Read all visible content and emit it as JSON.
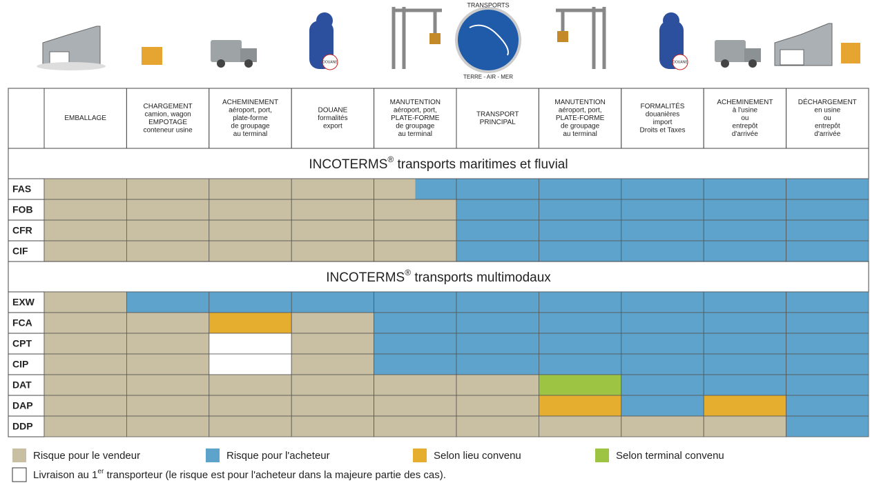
{
  "icons": {
    "globe_top": "TRANSPORTS",
    "globe_bottom": "TERRE - AIR - MER",
    "customs_left": "DOUANE",
    "customs_right": "DOUANE"
  },
  "table": {
    "columns": [
      [
        "EMBALLAGE"
      ],
      [
        "CHARGEMENT",
        "camion, wagon",
        "EMPOTAGE",
        "conteneur usine"
      ],
      [
        "ACHEMINEMENT",
        "aéroport, port,",
        "plate-forme",
        "de groupage",
        "au terminal"
      ],
      [
        "DOUANE",
        "formalités",
        "export"
      ],
      [
        "MANUTENTION",
        "aéroport, port,",
        "PLATE-FORME",
        "de groupage",
        "au terminal"
      ],
      [
        "TRANSPORT",
        "PRINCIPAL"
      ],
      [
        "MANUTENTION",
        "aéroport, port,",
        "PLATE-FORME",
        "de groupage",
        "au terminal"
      ],
      [
        "FORMALITÉS",
        "douanières",
        "import",
        "Droits et Taxes"
      ],
      [
        "ACHEMINEMENT",
        "à l'usine",
        "ou",
        "entrepôt",
        "d'arrivée"
      ],
      [
        "DÉCHARGEMENT",
        "en usine",
        "ou",
        "entrepôt",
        "d'arrivée"
      ]
    ],
    "sections": [
      {
        "title": [
          "INCOTERMS",
          "®",
          " transports maritimes et fluvial"
        ],
        "rows": [
          {
            "code": "FAS",
            "cells": [
              0,
              0,
              0,
              0,
              [
                0,
                1
              ],
              1,
              1,
              1,
              1,
              1
            ]
          },
          {
            "code": "FOB",
            "cells": [
              0,
              0,
              0,
              0,
              0,
              1,
              1,
              1,
              1,
              1
            ]
          },
          {
            "code": "CFR",
            "cells": [
              0,
              0,
              0,
              0,
              0,
              1,
              1,
              1,
              1,
              1
            ]
          },
          {
            "code": "CIF",
            "cells": [
              0,
              0,
              0,
              0,
              0,
              1,
              1,
              1,
              1,
              1
            ]
          }
        ]
      },
      {
        "title": [
          "INCOTERMS",
          "®",
          " transports multimodaux"
        ],
        "rows": [
          {
            "code": "EXW",
            "cells": [
              0,
              1,
              1,
              1,
              1,
              1,
              1,
              1,
              1,
              1
            ]
          },
          {
            "code": "FCA",
            "cells": [
              0,
              0,
              2,
              0,
              1,
              1,
              1,
              1,
              1,
              1
            ]
          },
          {
            "code": "CPT",
            "cells": [
              0,
              0,
              4,
              0,
              1,
              1,
              1,
              1,
              1,
              1
            ]
          },
          {
            "code": "CIP",
            "cells": [
              0,
              0,
              4,
              0,
              1,
              1,
              1,
              1,
              1,
              1
            ]
          },
          {
            "code": "DAT",
            "cells": [
              0,
              0,
              0,
              0,
              0,
              0,
              3,
              1,
              1,
              1
            ]
          },
          {
            "code": "DAP",
            "cells": [
              0,
              0,
              0,
              0,
              0,
              0,
              2,
              1,
              2,
              1
            ]
          },
          {
            "code": "DDP",
            "cells": [
              0,
              0,
              0,
              0,
              0,
              0,
              0,
              0,
              0,
              1
            ]
          }
        ]
      }
    ]
  },
  "legend": [
    {
      "label": [
        "Risque pour le vendeur"
      ],
      "color": "#c9bfa2"
    },
    {
      "label": [
        "Risque pour l'acheteur"
      ],
      "color": "#5ea3cc"
    },
    {
      "label": [
        "Selon lieu convenu"
      ],
      "color": "#e6ae2e"
    },
    {
      "label": [
        "Selon terminal convenu"
      ],
      "color": "#9dc443"
    },
    {
      "label": [
        "Livraison au 1",
        "er",
        " transporteur (le risque est pour l'acheteur dans la majeure partie des cas)."
      ],
      "color": "#ffffff"
    }
  ]
}
